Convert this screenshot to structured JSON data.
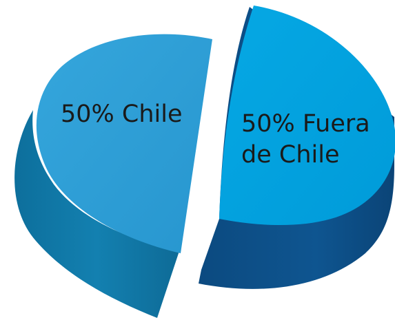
{
  "chart_data": {
    "type": "pie",
    "style": "3d-exploded",
    "slices": [
      {
        "label": "50% Chile",
        "label_lines": [
          "50% Chile"
        ],
        "value": 50,
        "color_top": "#2e9fd6",
        "color_side": "#1479a8",
        "color_side_dark": "#0f6792"
      },
      {
        "label": "50% Fuera de Chile",
        "label_lines": [
          "50% Fuera",
          "de Chile"
        ],
        "value": 50,
        "color_top": "#00a3e0",
        "color_side": "#0c4e84",
        "color_side_dark": "#0a4274"
      }
    ]
  }
}
